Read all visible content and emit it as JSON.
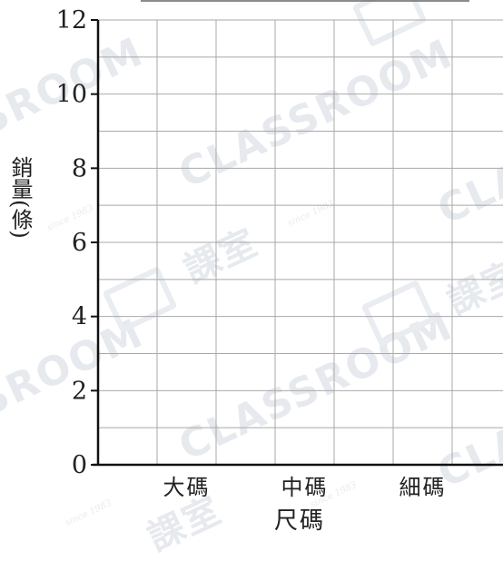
{
  "chart_data": {
    "type": "bar",
    "categories": [
      "大碼",
      "中碼",
      "細碼"
    ],
    "values": [
      null,
      null,
      null
    ],
    "xlabel": "尺碼",
    "ylabel": "銷量(條)",
    "ylim": [
      0,
      12
    ],
    "yticks": [
      0,
      2,
      4,
      6,
      8,
      10,
      12
    ],
    "grid": true,
    "grid_step": 1
  },
  "watermark": {
    "brand": "CLASSROOM",
    "brand_fragment": "SROOM",
    "chinese": "課室",
    "since": "since 1983"
  },
  "colors": {
    "grid": "#a9a9a9",
    "axis": "#111111",
    "text": "#222222",
    "watermark": "#e6e9ed"
  }
}
